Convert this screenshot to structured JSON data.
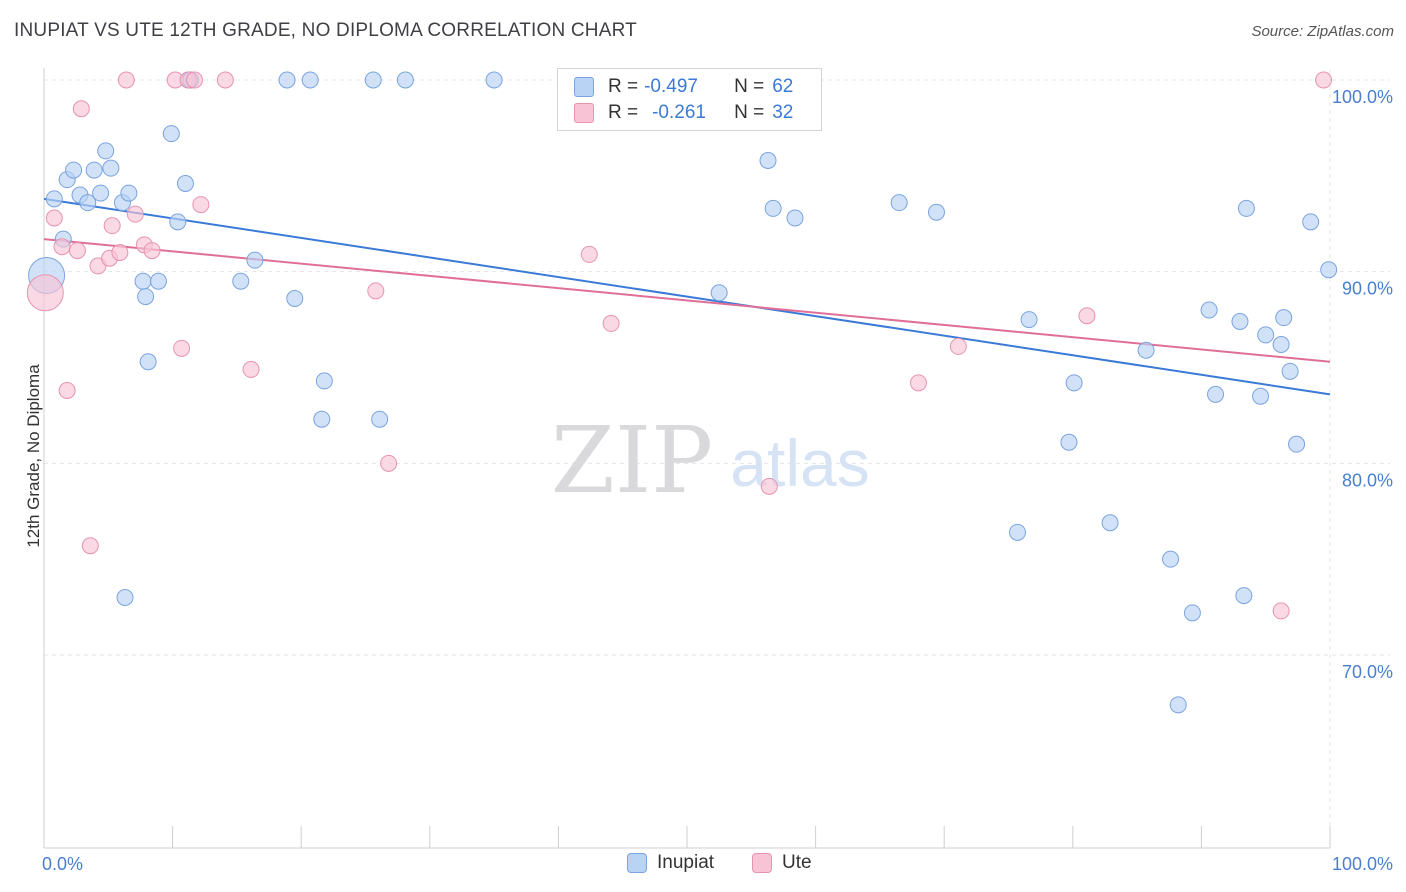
{
  "title": "INUPIAT VS UTE 12TH GRADE, NO DIPLOMA CORRELATION CHART",
  "source": "Source: ZipAtlas.com",
  "watermark": {
    "zip": "ZIP",
    "atlas": "atlas"
  },
  "colors": {
    "inupiat_fill": "#b9d3f5",
    "inupiat_stroke": "#7aa4de",
    "inupiat_line": "#3b7ad6",
    "ute_fill": "#f8c4d5",
    "ute_stroke": "#e793b0",
    "ute_line": "#e06f97",
    "axis_label": "#4a7fcf",
    "grid": "#e4e4e7"
  },
  "legend": {
    "rows": [
      {
        "r_label": "R =",
        "r_value": "-0.497",
        "n_label": "N =",
        "n_value": "62"
      },
      {
        "r_label": "R =",
        "r_value": "-0.261",
        "n_label": "N =",
        "n_value": "32"
      }
    ]
  },
  "chart_data": {
    "type": "scatter",
    "title": "INUPIAT VS UTE 12TH GRADE, NO DIPLOMA CORRELATION CHART",
    "xlabel": "",
    "ylabel": "12th Grade, No Diploma",
    "xlim": [
      0,
      100
    ],
    "ylim": [
      60,
      100.5
    ],
    "x_tick_labels": [
      "0.0%",
      "100.0%"
    ],
    "y_ticks": [
      70,
      80,
      90,
      100
    ],
    "y_tick_labels": [
      "70.0%",
      "80.0%",
      "90.0%",
      "100.0%"
    ],
    "grid": true,
    "legend_position": "bottom-center",
    "series": [
      {
        "name": "Inupiat",
        "r": -0.497,
        "n": 62,
        "trend": {
          "x": [
            0,
            100
          ],
          "y": [
            93.8,
            83.6
          ]
        },
        "points": [
          {
            "x": 0.2,
            "y": 89.8,
            "big": true
          },
          {
            "x": 0.8,
            "y": 93.8
          },
          {
            "x": 1.5,
            "y": 91.7
          },
          {
            "x": 1.8,
            "y": 94.8
          },
          {
            "x": 2.3,
            "y": 95.3
          },
          {
            "x": 2.8,
            "y": 94.0
          },
          {
            "x": 3.4,
            "y": 93.6
          },
          {
            "x": 3.9,
            "y": 95.3
          },
          {
            "x": 4.4,
            "y": 94.1
          },
          {
            "x": 4.8,
            "y": 96.3
          },
          {
            "x": 5.2,
            "y": 95.4
          },
          {
            "x": 6.1,
            "y": 93.6
          },
          {
            "x": 6.6,
            "y": 94.1
          },
          {
            "x": 7.7,
            "y": 89.5
          },
          {
            "x": 7.9,
            "y": 88.7
          },
          {
            "x": 8.1,
            "y": 85.3
          },
          {
            "x": 8.9,
            "y": 89.5
          },
          {
            "x": 9.9,
            "y": 97.2
          },
          {
            "x": 10.4,
            "y": 92.6
          },
          {
            "x": 11.0,
            "y": 94.6
          },
          {
            "x": 11.3,
            "y": 100.0
          },
          {
            "x": 11.4,
            "y": 100.0
          },
          {
            "x": 6.3,
            "y": 73.0
          },
          {
            "x": 15.3,
            "y": 89.5
          },
          {
            "x": 16.4,
            "y": 90.6
          },
          {
            "x": 18.9,
            "y": 100.0
          },
          {
            "x": 19.5,
            "y": 88.6
          },
          {
            "x": 20.7,
            "y": 100.0
          },
          {
            "x": 21.8,
            "y": 84.3
          },
          {
            "x": 21.6,
            "y": 82.3
          },
          {
            "x": 25.6,
            "y": 100.0
          },
          {
            "x": 26.1,
            "y": 82.3
          },
          {
            "x": 28.1,
            "y": 100.0
          },
          {
            "x": 35.0,
            "y": 100.0
          },
          {
            "x": 47.3,
            "y": 100.0
          },
          {
            "x": 52.5,
            "y": 88.9
          },
          {
            "x": 56.3,
            "y": 95.8
          },
          {
            "x": 56.7,
            "y": 93.3
          },
          {
            "x": 58.4,
            "y": 92.8
          },
          {
            "x": 66.5,
            "y": 93.6
          },
          {
            "x": 69.4,
            "y": 93.1
          },
          {
            "x": 75.7,
            "y": 76.4
          },
          {
            "x": 76.6,
            "y": 87.5
          },
          {
            "x": 79.7,
            "y": 81.1
          },
          {
            "x": 80.1,
            "y": 84.2
          },
          {
            "x": 82.9,
            "y": 76.9
          },
          {
            "x": 85.7,
            "y": 85.9
          },
          {
            "x": 87.6,
            "y": 75.0
          },
          {
            "x": 88.2,
            "y": 67.4
          },
          {
            "x": 89.3,
            "y": 72.2
          },
          {
            "x": 90.6,
            "y": 88.0
          },
          {
            "x": 91.1,
            "y": 83.6
          },
          {
            "x": 93.0,
            "y": 87.4
          },
          {
            "x": 93.3,
            "y": 73.1
          },
          {
            "x": 93.5,
            "y": 93.3
          },
          {
            "x": 94.6,
            "y": 83.5
          },
          {
            "x": 95.0,
            "y": 86.7
          },
          {
            "x": 96.2,
            "y": 86.2
          },
          {
            "x": 96.4,
            "y": 87.6
          },
          {
            "x": 96.9,
            "y": 84.8
          },
          {
            "x": 97.4,
            "y": 81.0
          },
          {
            "x": 98.5,
            "y": 92.6
          },
          {
            "x": 99.9,
            "y": 90.1
          }
        ]
      },
      {
        "name": "Ute",
        "r": -0.261,
        "n": 32,
        "trend": {
          "x": [
            0,
            100
          ],
          "y": [
            91.7,
            85.3
          ]
        },
        "points": [
          {
            "x": 0.1,
            "y": 88.9,
            "big": true
          },
          {
            "x": 0.8,
            "y": 92.8
          },
          {
            "x": 1.4,
            "y": 91.3
          },
          {
            "x": 1.8,
            "y": 83.8
          },
          {
            "x": 2.6,
            "y": 91.1
          },
          {
            "x": 2.9,
            "y": 98.5
          },
          {
            "x": 3.6,
            "y": 75.7
          },
          {
            "x": 4.2,
            "y": 90.3
          },
          {
            "x": 5.1,
            "y": 90.7
          },
          {
            "x": 5.3,
            "y": 92.4
          },
          {
            "x": 5.9,
            "y": 91.0
          },
          {
            "x": 6.4,
            "y": 100.0
          },
          {
            "x": 7.1,
            "y": 93.0
          },
          {
            "x": 7.8,
            "y": 91.4
          },
          {
            "x": 8.4,
            "y": 91.1
          },
          {
            "x": 10.2,
            "y": 100.0
          },
          {
            "x": 10.7,
            "y": 86.0
          },
          {
            "x": 11.2,
            "y": 100.0
          },
          {
            "x": 11.7,
            "y": 100.0
          },
          {
            "x": 12.2,
            "y": 93.5
          },
          {
            "x": 14.1,
            "y": 100.0
          },
          {
            "x": 16.1,
            "y": 84.9
          },
          {
            "x": 25.8,
            "y": 89.0
          },
          {
            "x": 26.8,
            "y": 80.0
          },
          {
            "x": 42.4,
            "y": 90.9
          },
          {
            "x": 44.1,
            "y": 87.3
          },
          {
            "x": 54.3,
            "y": 100.0
          },
          {
            "x": 56.4,
            "y": 78.8
          },
          {
            "x": 68.0,
            "y": 84.2
          },
          {
            "x": 71.1,
            "y": 86.1
          },
          {
            "x": 81.1,
            "y": 87.7
          },
          {
            "x": 96.2,
            "y": 72.3
          },
          {
            "x": 99.5,
            "y": 100.0
          }
        ]
      }
    ]
  }
}
